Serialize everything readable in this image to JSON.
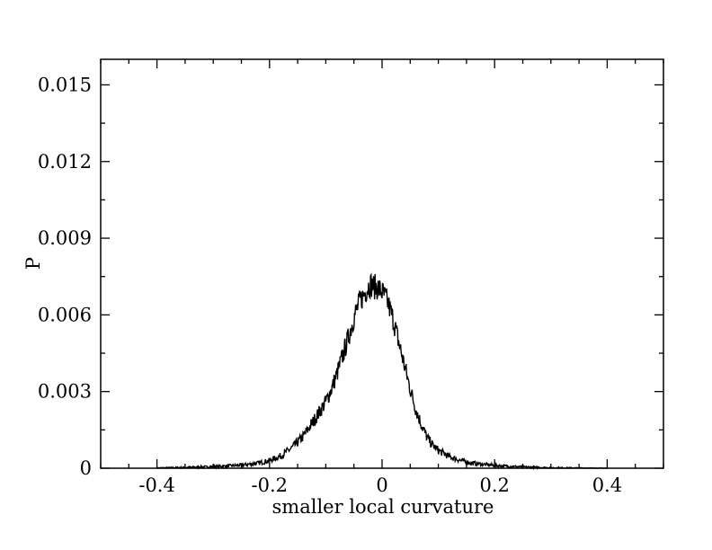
{
  "chart_data": {
    "type": "line",
    "title": "",
    "xlabel": "smaller local curvature",
    "ylabel": "P",
    "xlim": [
      -0.5,
      0.5
    ],
    "ylim": [
      0,
      0.016
    ],
    "x_ticks": [
      -0.4,
      -0.2,
      0,
      0.2,
      0.4
    ],
    "x_tick_labels": [
      "-0.4",
      "-0.2",
      "0",
      "0.2",
      "0.4"
    ],
    "y_ticks": [
      0,
      0.003,
      0.006,
      0.009,
      0.012,
      0.015
    ],
    "y_tick_labels": [
      "0",
      "0.003",
      "0.006",
      "0.009",
      "0.012",
      "0.015"
    ],
    "grid": false,
    "legend": "none",
    "line_color": "#000000",
    "series": [
      {
        "x": [
          -0.4,
          -0.35,
          -0.3,
          -0.25,
          -0.22,
          -0.2,
          -0.18,
          -0.16,
          -0.14,
          -0.12,
          -0.1,
          -0.09,
          -0.08,
          -0.07,
          -0.06,
          -0.05,
          -0.04,
          -0.035,
          -0.03,
          -0.025,
          -0.02,
          -0.015,
          -0.01,
          -0.005,
          0.0,
          0.005,
          0.01,
          0.02,
          0.03,
          0.04,
          0.05,
          0.06,
          0.07,
          0.08,
          0.09,
          0.1,
          0.12,
          0.14,
          0.16,
          0.18,
          0.2,
          0.22,
          0.25,
          0.3,
          0.35,
          0.4
        ],
        "y": [
          1e-05,
          3e-05,
          6e-05,
          0.00012,
          0.0002,
          0.0003,
          0.00048,
          0.0008,
          0.00125,
          0.0019,
          0.0026,
          0.0031,
          0.0037,
          0.0044,
          0.0051,
          0.0059,
          0.0065,
          0.0067,
          0.0069,
          0.0071,
          0.0072,
          0.0071,
          0.0071,
          0.007,
          0.0069,
          0.0067,
          0.0065,
          0.0058,
          0.0049,
          0.004,
          0.0031,
          0.0023,
          0.0017,
          0.0012,
          0.0009,
          0.0007,
          0.00045,
          0.0003,
          0.0002,
          0.00015,
          0.00011,
          8e-05,
          5e-05,
          2e-05,
          1e-05,
          0.0
        ]
      }
    ]
  }
}
